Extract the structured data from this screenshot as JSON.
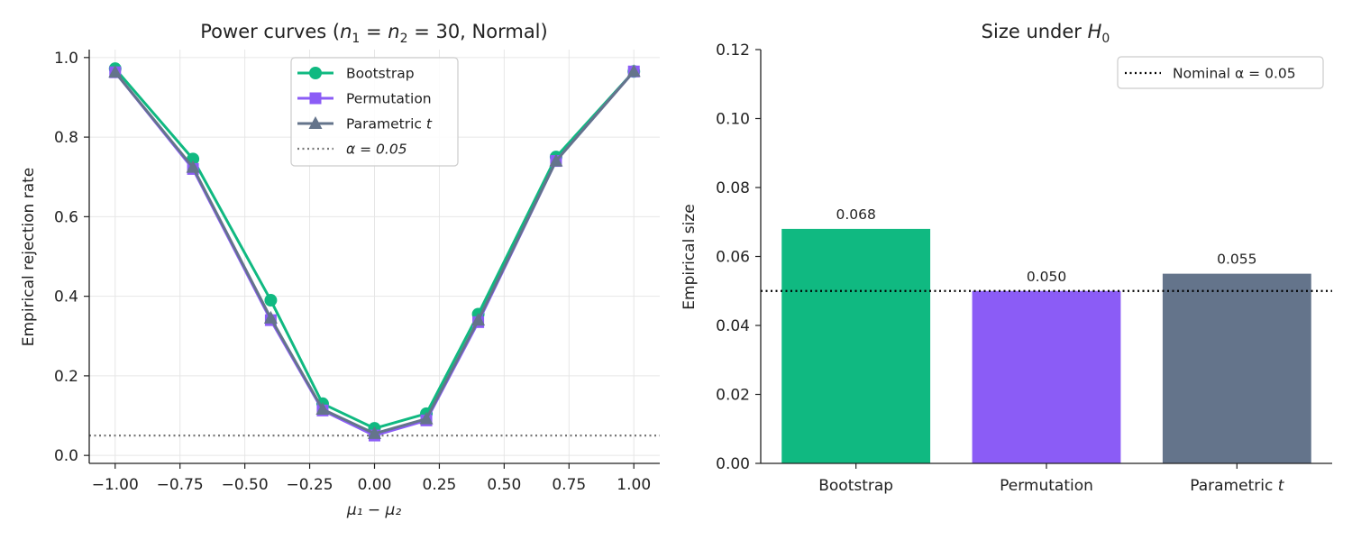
{
  "colors": {
    "bootstrap": "#10b981",
    "permutation": "#8b5cf6",
    "parametric": "#64748b",
    "alpha_line": "#777777",
    "nominal_line": "#000000",
    "grid": "#e6e6e6",
    "axis": "#222222"
  },
  "chart_data": [
    {
      "type": "line",
      "title": "Power curves (n₁ = n₂ = 30, Normal)",
      "title_parts": {
        "pre": "Power curves (",
        "n1": "n",
        "sub1": "1",
        "eq1": " = ",
        "n2": "n",
        "sub2": "2",
        "rest": " = 30, Normal)"
      },
      "xlabel": "μ₁ − μ₂",
      "ylabel": "Empirical rejection rate",
      "x": [
        -1.0,
        -0.7,
        -0.4,
        -0.2,
        0.0,
        0.2,
        0.4,
        0.7,
        1.0
      ],
      "xlim": [
        -1.1,
        1.1
      ],
      "ylim": [
        -0.02,
        1.02
      ],
      "xticks": [
        -1.0,
        -0.75,
        -0.5,
        -0.25,
        0.0,
        0.25,
        0.5,
        0.75,
        1.0
      ],
      "xtick_labels": [
        "−1.00",
        "−0.75",
        "−0.50",
        "−0.25",
        "0.00",
        "0.25",
        "0.50",
        "0.75",
        "1.00"
      ],
      "yticks": [
        0.0,
        0.2,
        0.4,
        0.6,
        0.8,
        1.0
      ],
      "ytick_labels": [
        "0.0",
        "0.2",
        "0.4",
        "0.6",
        "0.8",
        "1.0"
      ],
      "grid": true,
      "legend_position": "top-center",
      "series": [
        {
          "name": "Bootstrap",
          "marker": "circle",
          "values": [
            0.972,
            0.745,
            0.39,
            0.13,
            0.068,
            0.105,
            0.355,
            0.75,
            0.965
          ]
        },
        {
          "name": "Permutation",
          "marker": "square",
          "values": [
            0.963,
            0.72,
            0.34,
            0.113,
            0.05,
            0.088,
            0.335,
            0.74,
            0.965
          ]
        },
        {
          "name": "Parametric t",
          "name_parts": {
            "pre": "Parametric ",
            "ital": "t"
          },
          "marker": "triangle",
          "values": [
            0.963,
            0.724,
            0.345,
            0.116,
            0.055,
            0.092,
            0.34,
            0.74,
            0.965
          ]
        }
      ],
      "reference_line": {
        "label": "α = 0.05",
        "value": 0.05,
        "style": "dotted"
      }
    },
    {
      "type": "bar",
      "title": "Size under H₀",
      "title_parts": {
        "pre": "Size under ",
        "h": "H",
        "sub": "0"
      },
      "xlabel": "",
      "ylabel": "Empirical size",
      "categories": [
        "Bootstrap",
        "Permutation",
        "Parametric t"
      ],
      "category_parts": [
        {
          "pre": "Bootstrap",
          "ital": ""
        },
        {
          "pre": "Permutation",
          "ital": ""
        },
        {
          "pre": "Parametric ",
          "ital": "t"
        }
      ],
      "values": [
        0.068,
        0.05,
        0.055
      ],
      "value_labels": [
        "0.068",
        "0.050",
        "0.055"
      ],
      "ylim": [
        0.0,
        0.12
      ],
      "yticks": [
        0.0,
        0.02,
        0.04,
        0.06,
        0.08,
        0.1,
        0.12
      ],
      "ytick_labels": [
        "0.00",
        "0.02",
        "0.04",
        "0.06",
        "0.08",
        "0.10",
        "0.12"
      ],
      "grid": false,
      "legend_position": "top-right",
      "reference_line": {
        "label": "Nominal α = 0.05",
        "value": 0.05,
        "style": "dotted"
      }
    }
  ]
}
